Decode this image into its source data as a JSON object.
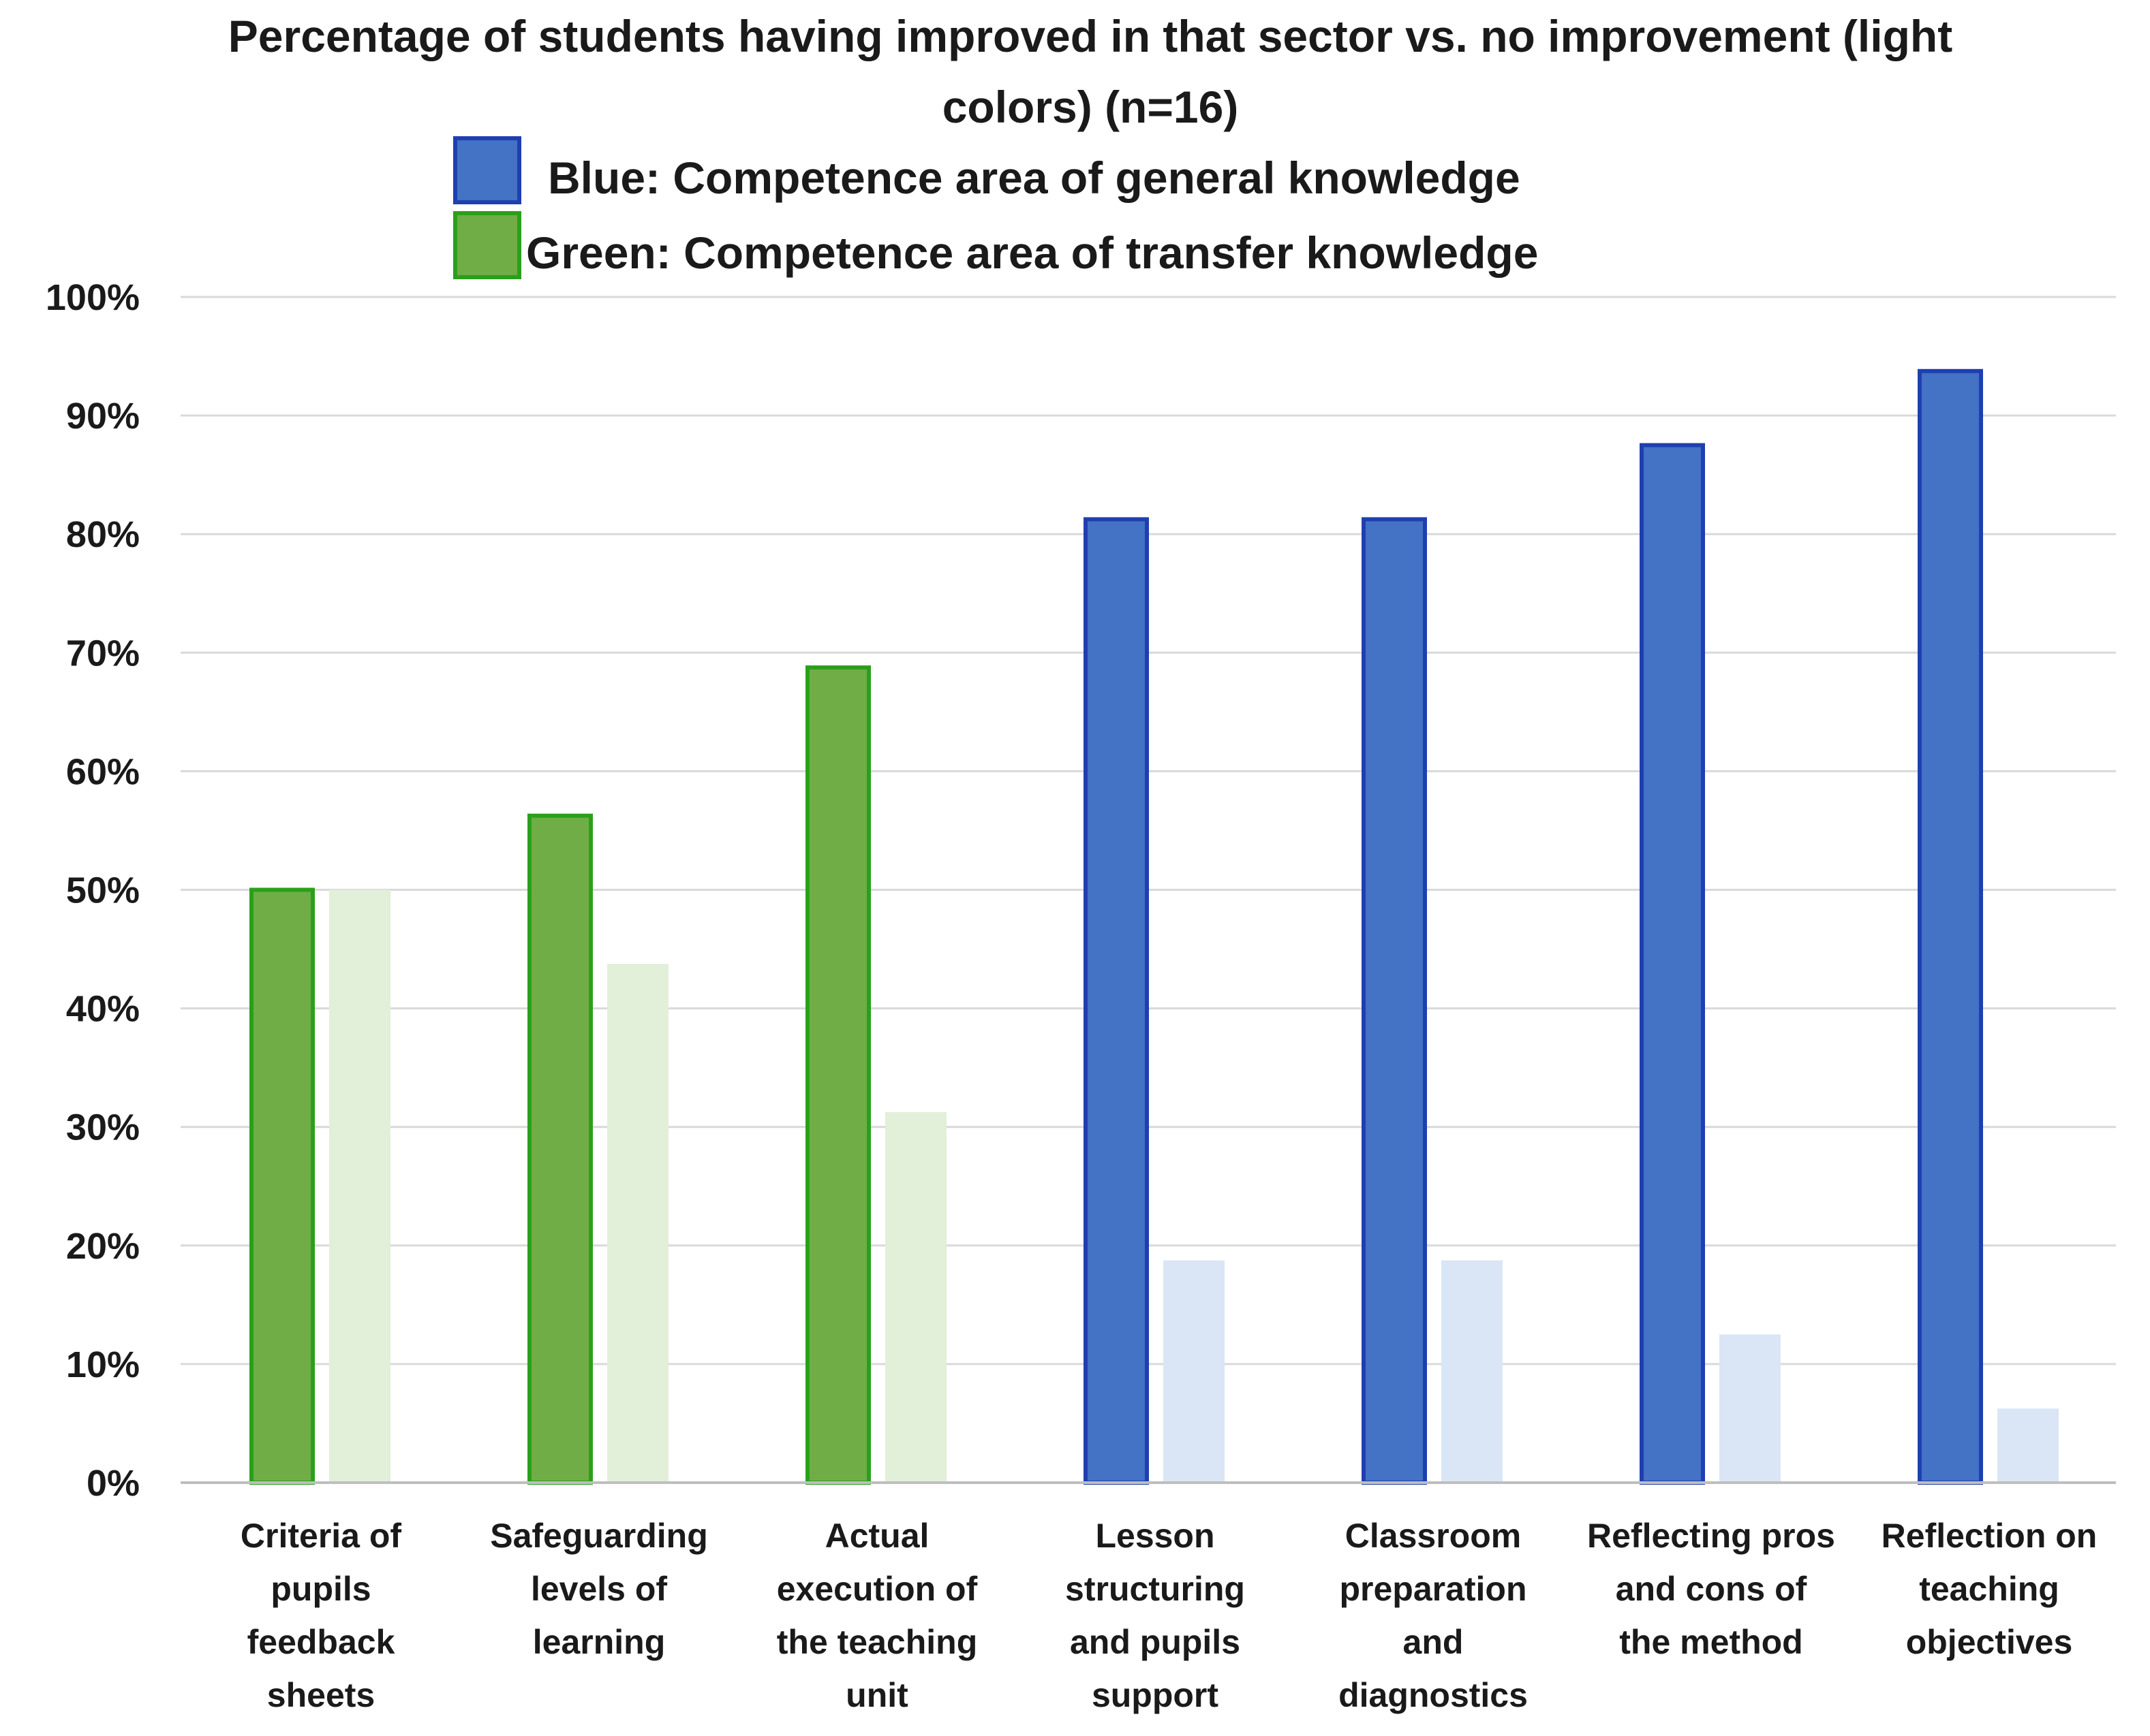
{
  "chart_data": {
    "type": "bar",
    "title": [
      "Percentage of students having improved in that sector vs. no improvement (light",
      "colors) (n=16)"
    ],
    "legend": [
      {
        "label": "Blue: Competence area of general knowledge",
        "color": "#4472c4",
        "border": "#1f3fb0"
      },
      {
        "label": "Green: Competence area of transfer knowledge",
        "color": "#70ad47",
        "border": "#2aa01a"
      }
    ],
    "ylim": [
      0,
      100
    ],
    "yticks": [
      "0%",
      "10%",
      "20%",
      "30%",
      "40%",
      "50%",
      "60%",
      "70%",
      "80%",
      "90%",
      "100%"
    ],
    "grid": true,
    "categories": [
      [
        "Criteria of",
        "pupils",
        "feedback",
        "sheets"
      ],
      [
        "Safeguarding",
        "levels of",
        "learning"
      ],
      [
        "Actual",
        "execution of",
        "the teaching",
        "unit"
      ],
      [
        "Lesson",
        "structuring",
        "and pupils",
        "support"
      ],
      [
        "Classroom",
        "preparation",
        "and",
        "diagnostics"
      ],
      [
        "Reflecting pros",
        "and cons of",
        "the method"
      ],
      [
        "Reflection on",
        "teaching",
        "objectives"
      ]
    ],
    "area": [
      "transfer",
      "transfer",
      "transfer",
      "general",
      "general",
      "general",
      "general"
    ],
    "series": [
      {
        "name": "Improved",
        "values": [
          50,
          56.25,
          68.75,
          81.25,
          81.25,
          87.5,
          93.75
        ]
      },
      {
        "name": "No improvement",
        "values": [
          50,
          43.75,
          31.25,
          18.75,
          18.75,
          12.5,
          6.25
        ]
      }
    ],
    "colors": {
      "transfer": {
        "dark": "#70ad47",
        "darkBorder": "#2aa01a",
        "light": "#e2efd9"
      },
      "general": {
        "dark": "#4472c4",
        "darkBorder": "#1f3fb0",
        "light": "#dae6f5"
      }
    }
  }
}
